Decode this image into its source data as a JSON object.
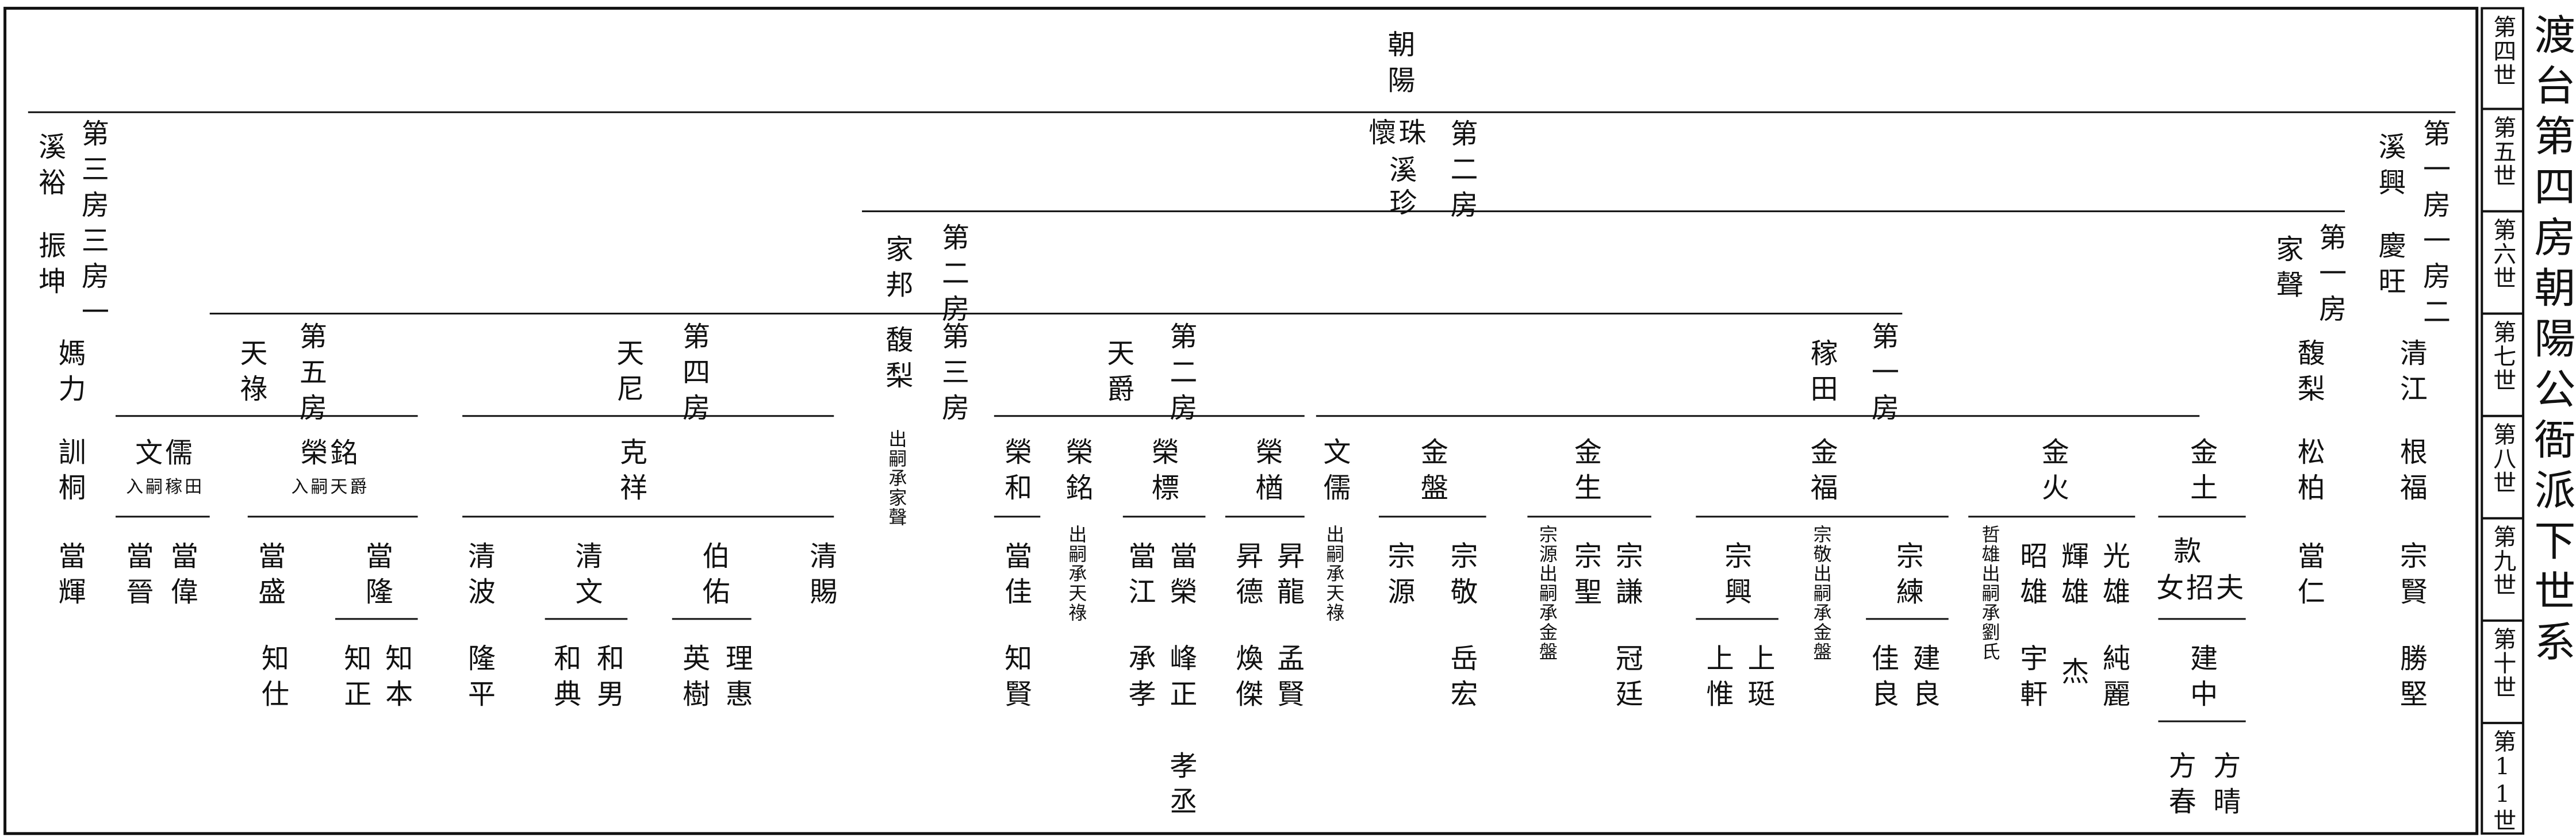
{
  "title": "渡台第四房朝陽公衙派下世系",
  "generations": [
    "第四世",
    "第五世",
    "第六世",
    "第七世",
    "第八世",
    "第九世",
    "第十世",
    "第11世"
  ],
  "nodes": [
    {
      "label": "朝陽"
    },
    {
      "label": "第三房三房一"
    },
    {
      "label": "溪裕"
    },
    {
      "label": "振坤"
    },
    {
      "label": "懷珠"
    },
    {
      "label": "溪"
    },
    {
      "label": "珍"
    },
    {
      "label": "第二房"
    },
    {
      "label": "第一房一房二"
    },
    {
      "label": "溪興"
    },
    {
      "label": "慶旺"
    },
    {
      "label": "家邦"
    },
    {
      "label": "第二房"
    },
    {
      "label": "家聲"
    },
    {
      "label": "第一房"
    },
    {
      "label": "媽力"
    },
    {
      "label": "天祿"
    },
    {
      "label": "第五房"
    },
    {
      "label": "天尼"
    },
    {
      "label": "第四房"
    },
    {
      "label": "馥梨"
    },
    {
      "label": "第三房"
    },
    {
      "label": "天爵"
    },
    {
      "label": "第二房"
    },
    {
      "label": "稼田"
    },
    {
      "label": "第一房"
    },
    {
      "label": "馥梨"
    },
    {
      "label": "清江"
    },
    {
      "label": "訓桐"
    },
    {
      "label": "文儒"
    },
    {
      "label": "入嗣稼田"
    },
    {
      "label": "榮銘"
    },
    {
      "label": "入嗣天爵"
    },
    {
      "label": "克祥"
    },
    {
      "label": "出嗣承家聲"
    },
    {
      "label": "榮和"
    },
    {
      "label": "榮銘"
    },
    {
      "label": "榮標"
    },
    {
      "label": "榮楢"
    },
    {
      "label": "文儒"
    },
    {
      "label": "金盤"
    },
    {
      "label": "金生"
    },
    {
      "label": "金福"
    },
    {
      "label": "金火"
    },
    {
      "label": "金土"
    },
    {
      "label": "松柏"
    },
    {
      "label": "根福"
    },
    {
      "label": "當輝"
    },
    {
      "label": "當晉"
    },
    {
      "label": "當偉"
    },
    {
      "label": "當盛"
    },
    {
      "label": "當隆"
    },
    {
      "label": "清波"
    },
    {
      "label": "清文"
    },
    {
      "label": "伯佑"
    },
    {
      "label": "清賜"
    },
    {
      "label": "當佳"
    },
    {
      "label": "出嗣承天祿"
    },
    {
      "label": "當江"
    },
    {
      "label": "當榮"
    },
    {
      "label": "昇德"
    },
    {
      "label": "昇龍"
    },
    {
      "label": "出嗣承天祿"
    },
    {
      "label": "宗源"
    },
    {
      "label": "宗敬"
    },
    {
      "label": "宗源出嗣承金盤"
    },
    {
      "label": "宗聖"
    },
    {
      "label": "宗謙"
    },
    {
      "label": "宗興"
    },
    {
      "label": "宗敬出嗣承金盤"
    },
    {
      "label": "宗練"
    },
    {
      "label": "哲雄出嗣承劉氏"
    },
    {
      "label": "昭雄"
    },
    {
      "label": "輝雄"
    },
    {
      "label": "光雄"
    },
    {
      "label": "款"
    },
    {
      "label": "女招夫"
    },
    {
      "label": "當仁"
    },
    {
      "label": "宗賢"
    },
    {
      "label": "知仕"
    },
    {
      "label": "知正"
    },
    {
      "label": "知本"
    },
    {
      "label": "隆平"
    },
    {
      "label": "和典"
    },
    {
      "label": "和男"
    },
    {
      "label": "英樹"
    },
    {
      "label": "理惠"
    },
    {
      "label": "知賢"
    },
    {
      "label": "承孝"
    },
    {
      "label": "峰正"
    },
    {
      "label": "煥傑"
    },
    {
      "label": "孟賢"
    },
    {
      "label": "岳宏"
    },
    {
      "label": "冠廷"
    },
    {
      "label": "上惟"
    },
    {
      "label": "上珽"
    },
    {
      "label": "佳良"
    },
    {
      "label": "建良"
    },
    {
      "label": "宇軒"
    },
    {
      "label": "杰"
    },
    {
      "label": "純麗"
    },
    {
      "label": "建中"
    },
    {
      "label": "勝堅"
    },
    {
      "label": "孝丞"
    },
    {
      "label": "方春"
    },
    {
      "label": "方晴"
    }
  ]
}
